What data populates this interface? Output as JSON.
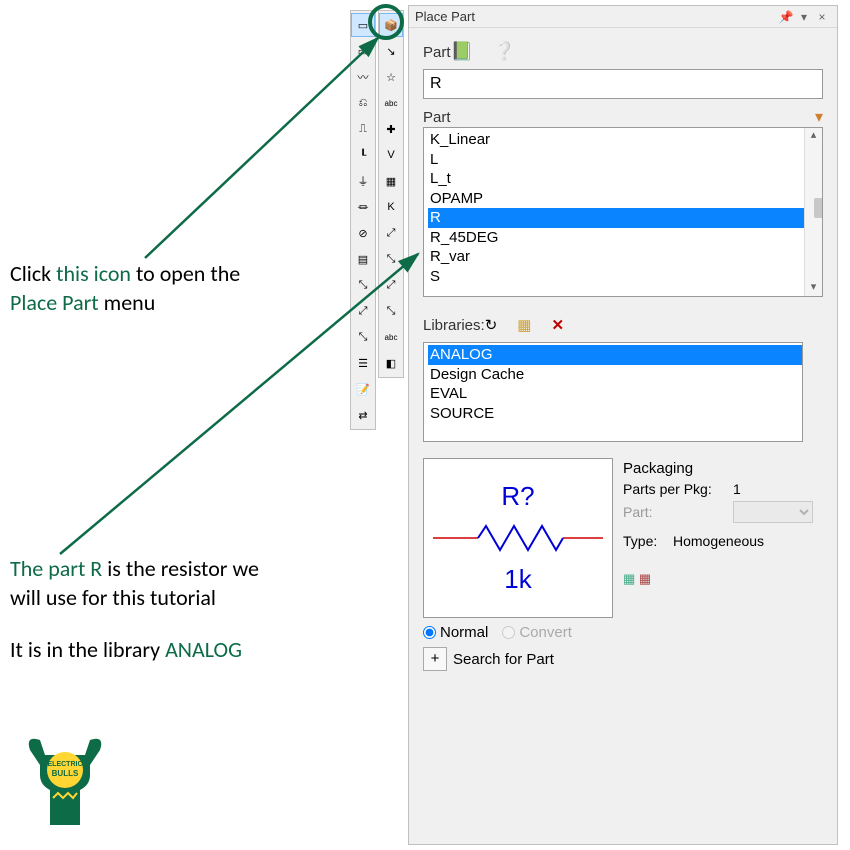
{
  "colors": {
    "accent_green": "#0e6b47",
    "select_blue": "#0a84ff",
    "symbol_blue": "#0000d8",
    "symbol_red": "#d00000",
    "panel_bg": "#f0f0f0",
    "logo_yellow": "#ffd633"
  },
  "annotations": {
    "line1_pre": "Click ",
    "line1_green": "this icon",
    "line1_post": " to open the",
    "line2_green": "Place Part",
    "line2_post": " menu",
    "line3_green": "The part R",
    "line3_post": " is the resistor we",
    "line4": "will use for this tutorial",
    "line5_pre": "It is in the library ",
    "line5_green": "ANALOG"
  },
  "toolbar_left": [
    {
      "name": "cursor-icon",
      "glyph": "▭",
      "highlighted": true
    },
    {
      "name": "part-icon",
      "glyph": "▭"
    },
    {
      "name": "wire-icon",
      "glyph": "〰"
    },
    {
      "name": "net-icon",
      "glyph": "⎌"
    },
    {
      "name": "bus-icon",
      "glyph": "⎍"
    },
    {
      "name": "junction-icon",
      "glyph": "┖"
    },
    {
      "name": "gnd-icon",
      "glyph": "⏚"
    },
    {
      "name": "pwr-icon",
      "glyph": "⏛"
    },
    {
      "name": "off-icon",
      "glyph": "⊘"
    },
    {
      "name": "hier-icon",
      "glyph": "▤"
    },
    {
      "name": "ptr-icon",
      "glyph": "⤡"
    },
    {
      "name": "sel1-icon",
      "glyph": "⤢"
    },
    {
      "name": "sel2-icon",
      "glyph": "⤡"
    },
    {
      "name": "line-icon",
      "glyph": "☰"
    },
    {
      "name": "text-icon",
      "glyph": "📝"
    },
    {
      "name": "mirror-icon",
      "glyph": "⇄"
    }
  ],
  "toolbar_right": [
    {
      "name": "place-part-icon",
      "glyph": "📦",
      "highlighted": true
    },
    {
      "name": "place-wire-icon",
      "glyph": "↘"
    },
    {
      "name": "place-net-icon",
      "glyph": "☆"
    },
    {
      "name": "abc-icon",
      "glyph": "abc"
    },
    {
      "name": "plus-icon",
      "glyph": "✚"
    },
    {
      "name": "vss-icon",
      "glyph": "V"
    },
    {
      "name": "gnd2-icon",
      "glyph": "▦"
    },
    {
      "name": "k-icon",
      "glyph": "K"
    },
    {
      "name": "ptr2-icon",
      "glyph": "⤢"
    },
    {
      "name": "ptr3-icon",
      "glyph": "⤡"
    },
    {
      "name": "ptr4-icon",
      "glyph": "⤢"
    },
    {
      "name": "ptr5-icon",
      "glyph": "⤡"
    },
    {
      "name": "abc2-icon",
      "glyph": "abc"
    },
    {
      "name": "misc-icon",
      "glyph": "◧"
    }
  ],
  "panel": {
    "title": "Place Part",
    "part_label": "Part",
    "part_input_value": "R",
    "part_list_label": "Part",
    "parts": [
      "K_Linear",
      "L",
      "L_t",
      "OPAMP",
      "R",
      "R_45DEG",
      "R_var",
      "S"
    ],
    "selected_part_index": 4,
    "libraries_label": "Libraries:",
    "libraries": [
      "ANALOG",
      "Design Cache",
      "EVAL",
      "SOURCE"
    ],
    "selected_library_index": 0,
    "preview_top": "R?",
    "preview_bottom": "1k",
    "packaging_title": "Packaging",
    "parts_per_pkg_label": "Parts per Pkg:",
    "parts_per_pkg_value": "1",
    "part_dropdown_label": "Part:",
    "type_label": "Type:",
    "type_value": "Homogeneous",
    "radio_normal": "Normal",
    "radio_convert": "Convert",
    "search_label": "Search for Part"
  },
  "logo": {
    "text1": "ELECTRIC",
    "text2": "BULLS"
  }
}
